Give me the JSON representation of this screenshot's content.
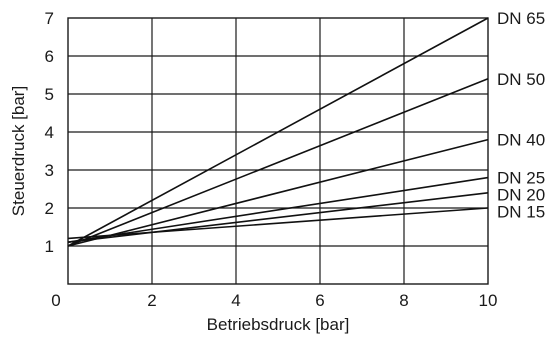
{
  "chart_data": {
    "type": "line",
    "title": "",
    "xlabel": "Betriebsdruck [bar]",
    "ylabel": "Steuerdruck [bar]",
    "xlim": [
      0,
      10
    ],
    "ylim": [
      0,
      7
    ],
    "xticks": [
      0,
      2,
      4,
      6,
      8,
      10
    ],
    "yticks": [
      1,
      2,
      3,
      4,
      5,
      6,
      7
    ],
    "x_origin_label": "0",
    "grid": true,
    "series": [
      {
        "name": "DN 65",
        "x": [
          0,
          10
        ],
        "y": [
          1.0,
          7.0
        ]
      },
      {
        "name": "DN 50",
        "x": [
          0,
          10
        ],
        "y": [
          1.0,
          5.4
        ]
      },
      {
        "name": "DN 40",
        "x": [
          0,
          10
        ],
        "y": [
          1.0,
          3.8
        ]
      },
      {
        "name": "DN 25",
        "x": [
          0,
          10
        ],
        "y": [
          1.1,
          2.8
        ]
      },
      {
        "name": "DN 20",
        "x": [
          0,
          10
        ],
        "y": [
          1.1,
          2.4
        ]
      },
      {
        "name": "DN 15",
        "x": [
          0,
          10
        ],
        "y": [
          1.2,
          2.0
        ]
      }
    ]
  }
}
